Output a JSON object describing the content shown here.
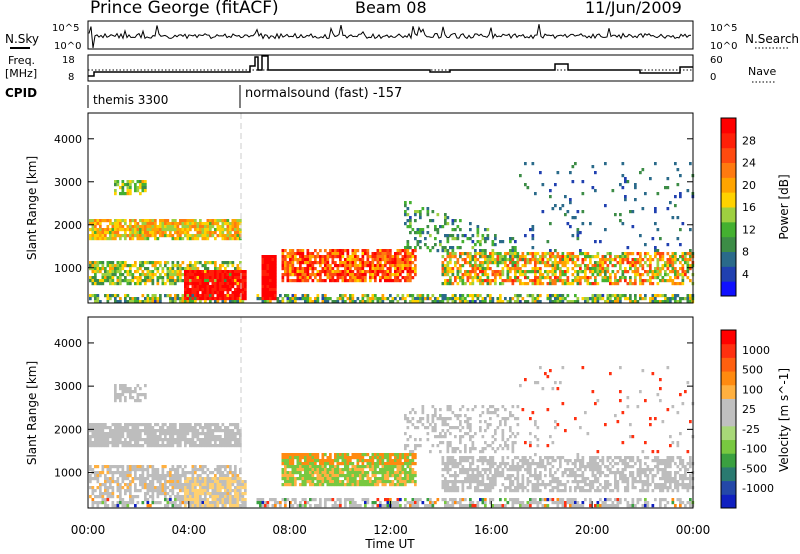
{
  "header": {
    "station": "Prince George (fitACF)",
    "beam": "Beam 08",
    "date": "11/Jun/2009"
  },
  "sidebar": {
    "nsky": "N.Sky",
    "nsearch": "N.Search",
    "freq": "Freq.",
    "freq_unit": "[MHz]",
    "nave": "Nave",
    "cpid": "CPID"
  },
  "cpid_labels": [
    "themis 3300",
    "normalsound (fast) -157"
  ],
  "chart_data": [
    {
      "type": "line",
      "name": "noise",
      "left_ticks": [
        "10^5",
        "10^0"
      ],
      "right_ticks": [
        "10^5",
        "10^0"
      ]
    },
    {
      "type": "line",
      "name": "freq-nave",
      "left_ticks": [
        "18",
        "8"
      ],
      "right_ticks": [
        "60",
        "0"
      ]
    },
    {
      "type": "heatmap",
      "name": "power",
      "ylabel": "Slant Range [km]",
      "xlabel": "",
      "yticks": [
        "1000",
        "2000",
        "3000",
        "4000"
      ],
      "ylim": [
        180,
        4600
      ],
      "colorbar": {
        "label": "Power [dB]",
        "ticks": [
          "4",
          "8",
          "12",
          "16",
          "20",
          "24",
          "28"
        ],
        "colors": [
          "#1010ff",
          "#2040b0",
          "#2a6a8a",
          "#3c8c46",
          "#44b030",
          "#9ed040",
          "#ffd200",
          "#ffa400",
          "#ff7a10",
          "#ff4a10",
          "#ff2008",
          "#ff0000"
        ]
      }
    },
    {
      "type": "heatmap",
      "name": "velocity",
      "ylabel": "Slant Range [km]",
      "xlabel": "Time UT",
      "xticks": [
        "00:00",
        "04:00",
        "08:00",
        "12:00",
        "16:00",
        "20:00",
        "00:00"
      ],
      "yticks": [
        "1000",
        "2000",
        "3000",
        "4000"
      ],
      "ylim": [
        180,
        4600
      ],
      "colorbar": {
        "label": "Velocity [m s^-1]",
        "ticks": [
          "1000",
          "500",
          "100",
          "25",
          "-25",
          "-100",
          "-500",
          "-1000"
        ],
        "colors": [
          "#1020c0",
          "#2448a8",
          "#2a7a70",
          "#3aa040",
          "#78c840",
          "#a8d878",
          "#c0c0c0",
          "#c0c0c0",
          "#ffb040",
          "#ff8a10",
          "#ff6010",
          "#ff3010",
          "#ff0000"
        ]
      }
    }
  ]
}
